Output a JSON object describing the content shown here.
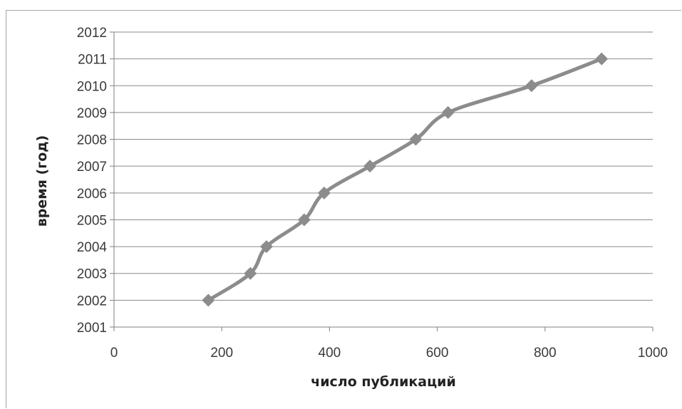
{
  "chart_data": {
    "type": "line",
    "title": "",
    "xlabel": "число публикаций",
    "ylabel": "время (год)",
    "xlim": [
      0,
      1000
    ],
    "ylim": [
      2001,
      2012
    ],
    "xticks": [
      "0",
      "200",
      "400",
      "600",
      "800",
      "1000"
    ],
    "yticks": [
      "2001",
      "2002",
      "2003",
      "2004",
      "2005",
      "2006",
      "2007",
      "2008",
      "2009",
      "2010",
      "2011",
      "2012"
    ],
    "grid": "horizontal",
    "legend": "none",
    "colors": {
      "line": "#8c8c8c",
      "grid": "#8a8a8a",
      "axis": "#7f7f7f"
    },
    "series": [
      {
        "marker": "diamond",
        "x": [
          175,
          253,
          283,
          353,
          390,
          475,
          560,
          620,
          775,
          905
        ],
        "y": [
          2002,
          2003,
          2004,
          2005,
          2006,
          2007,
          2008,
          2009,
          2010,
          2011
        ]
      }
    ]
  }
}
